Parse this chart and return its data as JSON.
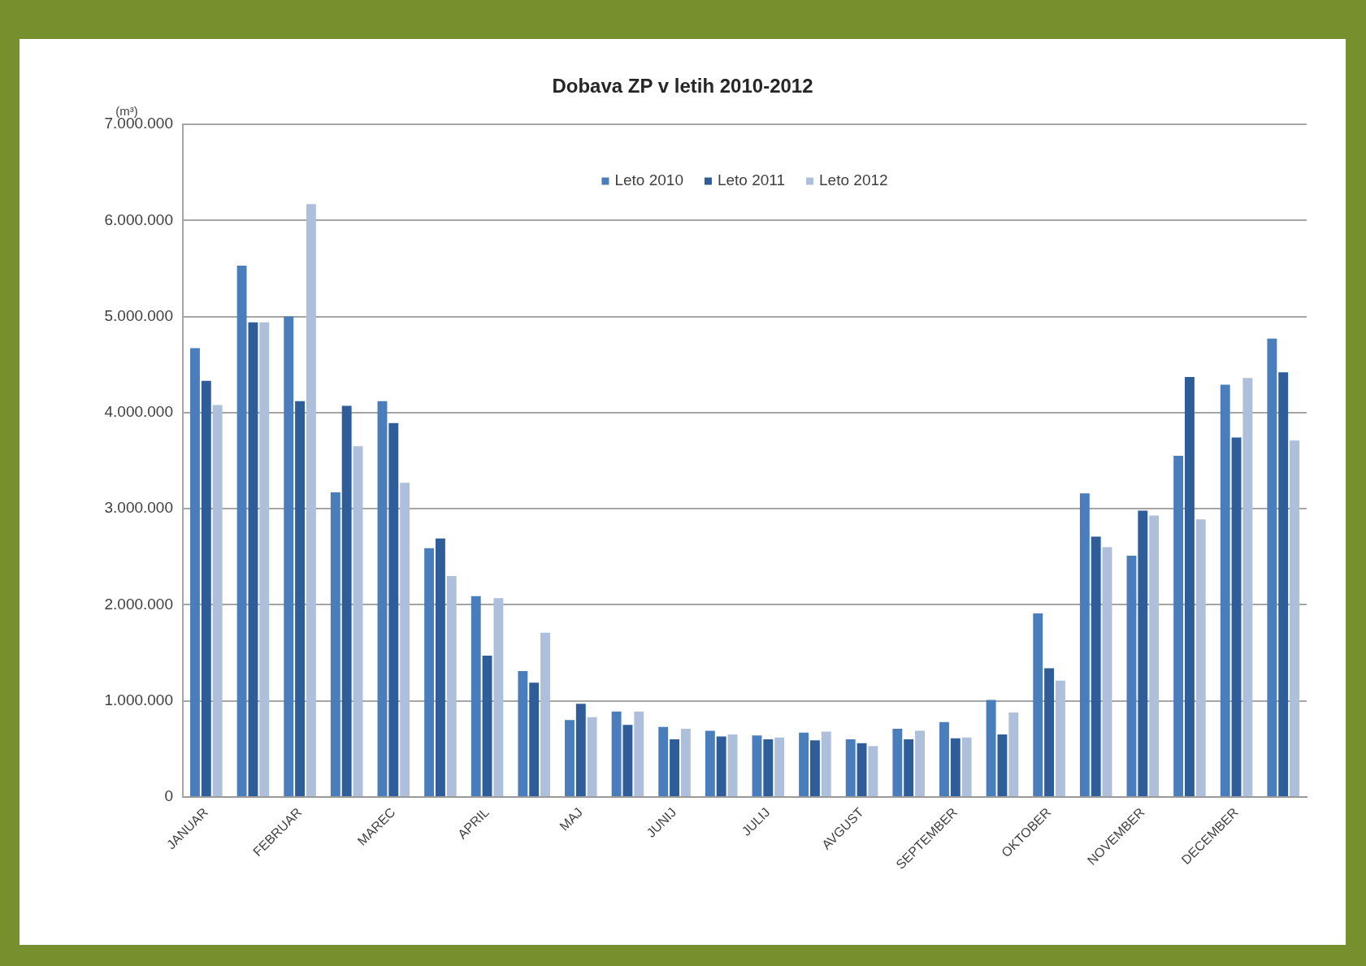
{
  "chart_data": {
    "type": "bar",
    "title": "Dobava ZP v letih 2010-2012",
    "ylabel": "(m³)",
    "categories": [
      "JANUAR",
      null,
      "FEBRUAR",
      null,
      "MAREC",
      null,
      "APRIL",
      null,
      "MAJ",
      null,
      "JUNIJ",
      null,
      "JULIJ",
      null,
      "AVGUST",
      null,
      "SEPTEMBER",
      null,
      "OKTOBER",
      null,
      "NOVEMBER",
      null,
      "DECEMBER",
      null
    ],
    "series": [
      {
        "name": "Leto 2010",
        "color": "#4a7dbb",
        "values": [
          4670000,
          5530000,
          5000000,
          3170000,
          4120000,
          2590000,
          2090000,
          1310000,
          800000,
          890000,
          730000,
          690000,
          640000,
          670000,
          600000,
          710000,
          780000,
          1010000,
          1910000,
          3160000,
          2510000,
          3550000,
          4290000,
          4770000
        ]
      },
      {
        "name": "Leto 2011",
        "color": "#2e5d99",
        "values": [
          4330000,
          4940000,
          4120000,
          4070000,
          3890000,
          2690000,
          1470000,
          1190000,
          970000,
          750000,
          600000,
          630000,
          600000,
          590000,
          560000,
          600000,
          610000,
          650000,
          1340000,
          2710000,
          2980000,
          4370000,
          3740000,
          4420000
        ]
      },
      {
        "name": "Leto 2012",
        "color": "#aebfdc",
        "values": [
          4080000,
          4940000,
          6170000,
          3650000,
          3270000,
          2300000,
          2070000,
          1710000,
          830000,
          890000,
          710000,
          650000,
          620000,
          680000,
          530000,
          690000,
          620000,
          880000,
          1210000,
          2600000,
          2930000,
          2890000,
          4360000,
          3710000
        ]
      }
    ],
    "ylim": [
      0,
      7000000
    ],
    "yticks": [
      0,
      {
        "value": 1000000,
        "label": "1.000.000"
      },
      {
        "value": 2000000,
        "label": "2.000.000"
      },
      {
        "value": 3000000,
        "label": "3.000.000"
      },
      {
        "value": 4000000,
        "label": "4.000.000"
      },
      {
        "value": 5000000,
        "label": "5.000.000"
      },
      {
        "value": 6000000,
        "label": "6.000.000"
      },
      {
        "value": 7000000,
        "label": "7.000.000"
      }
    ],
    "grid": "y",
    "legend": "top"
  }
}
